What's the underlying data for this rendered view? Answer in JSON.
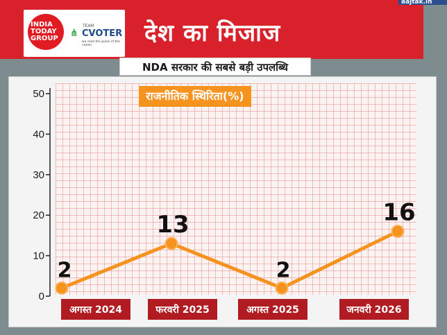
{
  "header": {
    "logo_line1": "INDIA",
    "logo_line2": "TODAY",
    "logo_line3": "GROUP",
    "team_label": "TEAM",
    "cvoter_text": "CVOTER",
    "cvoter_tagline": "we read the pulse of the nation",
    "main_title": "देश का मिजाज",
    "subtitle": "NDA सरकार की सबसे बड़ी उपलब्धि",
    "brand_badge": "aajtak.in"
  },
  "colors": {
    "header_red": "#d8212a",
    "line_orange": "#f6921e",
    "category_box": "#b01c22"
  },
  "chart_data": {
    "type": "line",
    "title": "राजनीतिक स्थिरिता(%)",
    "categories": [
      "अगस्त 2024",
      "फरवरी 2025",
      "अगस्त 2025",
      "जनवरी 2026"
    ],
    "series": [
      {
        "values": [
          2,
          13,
          2,
          16
        ]
      }
    ],
    "data_labels": [
      "2",
      "13",
      "2",
      "16"
    ],
    "yticks": [
      "0",
      "10",
      "20",
      "30",
      "40",
      "50"
    ],
    "ylim": [
      0,
      50
    ],
    "grid": true
  }
}
